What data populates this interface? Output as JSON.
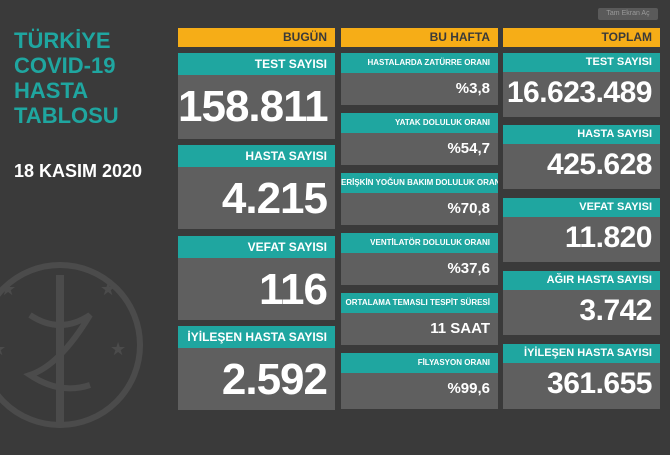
{
  "title_lines": [
    "TÜRKİYE",
    "COVID-19",
    "HASTA",
    "TABLOSU"
  ],
  "date": "18 KASIM 2020",
  "top_button": "Tam Ekran Aç",
  "columns": {
    "today": {
      "header": "BUGÜN",
      "cards": [
        {
          "label": "TEST SAYISI",
          "value": "158.811"
        },
        {
          "label": "HASTA SAYISI",
          "value": "4.215"
        },
        {
          "label": "VEFAT SAYISI",
          "value": "116"
        },
        {
          "label": "İYİLEŞEN HASTA SAYISI",
          "value": "2.592"
        }
      ]
    },
    "week": {
      "header": "BU HAFTA",
      "cards": [
        {
          "label": "HASTALARDA ZATÜRRE ORANI",
          "value": "%3,8"
        },
        {
          "label": "YATAK DOLULUK ORANI",
          "value": "%54,7"
        },
        {
          "label": "ERİŞKİN YOĞUN BAKIM DOLULUK ORANI",
          "value": "%70,8"
        },
        {
          "label": "VENTİLATÖR DOLULUK ORANI",
          "value": "%37,6"
        },
        {
          "label": "ORTALAMA TEMASLI TESPİT SÜRESİ",
          "value": "11 SAAT"
        },
        {
          "label": "FİLYASYON ORANI",
          "value": "%99,6"
        }
      ]
    },
    "total": {
      "header": "TOPLAM",
      "cards": [
        {
          "label": "TEST SAYISI",
          "value": "16.623.489"
        },
        {
          "label": "HASTA SAYISI",
          "value": "425.628"
        },
        {
          "label": "VEFAT SAYISI",
          "value": "11.820"
        },
        {
          "label": "AĞIR HASTA SAYISI",
          "value": "3.742"
        },
        {
          "label": "İYİLEŞEN HASTA SAYISI",
          "value": "361.655"
        }
      ]
    }
  },
  "colors": {
    "background": "#3a3a3a",
    "teal": "#1fa6a0",
    "orange": "#f6ad17",
    "card": "#5f5f5f"
  }
}
